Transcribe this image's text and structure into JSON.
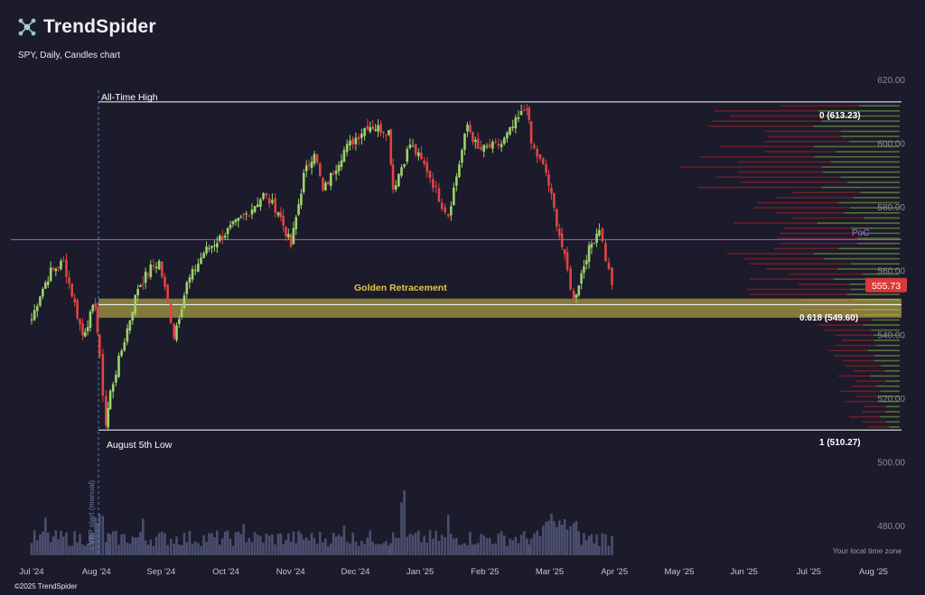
{
  "brand": {
    "logo": "TrendSpider",
    "copyright": "©2025 TrendSpider"
  },
  "chart_subtitle": "SPY, Daily, Candles chart",
  "colors": {
    "background": "#1b1b2b",
    "up": "#9ed36a",
    "down": "#e04444",
    "poc": "#a64bd6",
    "golden_zone": "#d8c84a",
    "price_badge": "#d93a3a",
    "volume": "#4a4f6e"
  },
  "annotations": {
    "ath_label": "All-Time High",
    "low_label": "August 5th Low",
    "fib_0": "0 (613.23)",
    "fib_0618": "0.618 (549.60)",
    "fib_1": "1 (510.27)",
    "golden": "Golden Retracement",
    "poc": "PoC",
    "current_price": "555.73",
    "vbp_marker": "↕ VBP start (manual)",
    "timezone": "Your local time zone"
  },
  "chart_data": {
    "type": "candlestick",
    "symbol": "SPY",
    "interval": "Daily",
    "title": "SPY, Daily, Candles chart",
    "y_ticks": [
      620,
      600,
      580,
      560,
      540,
      520,
      500,
      480
    ],
    "y_tick_labels": [
      "620.00",
      "600.00",
      "580.00",
      "560.00",
      "540.00",
      "520.00",
      "500.00",
      "480.00"
    ],
    "ylim": [
      474,
      624
    ],
    "x_ticks": [
      "Jul '24",
      "Aug '24",
      "Sep '24",
      "Oct '24",
      "Nov '24",
      "Dec '24",
      "Jan '25",
      "Feb '25",
      "Mar '25",
      "Apr '25",
      "May '25",
      "Jun '25",
      "Jul '25",
      "Aug '25"
    ],
    "fibonacci": {
      "high": 613.23,
      "low": 510.27,
      "level_0618": 549.6,
      "golden_zone": [
        545.5,
        551.5
      ]
    },
    "poc_price": 570.0,
    "current_price": 555.73,
    "close_path": [
      {
        "date": "2024-07-01",
        "close": 545
      },
      {
        "date": "2024-07-05",
        "close": 553
      },
      {
        "date": "2024-07-10",
        "close": 560
      },
      {
        "date": "2024-07-16",
        "close": 563
      },
      {
        "date": "2024-07-20",
        "close": 553
      },
      {
        "date": "2024-07-25",
        "close": 540
      },
      {
        "date": "2024-07-31",
        "close": 550
      },
      {
        "date": "2024-08-02",
        "close": 532
      },
      {
        "date": "2024-08-05",
        "close": 512
      },
      {
        "date": "2024-08-07",
        "close": 522
      },
      {
        "date": "2024-08-15",
        "close": 542
      },
      {
        "date": "2024-08-20",
        "close": 555
      },
      {
        "date": "2024-08-26",
        "close": 561
      },
      {
        "date": "2024-08-30",
        "close": 563
      },
      {
        "date": "2024-09-03",
        "close": 550
      },
      {
        "date": "2024-09-06",
        "close": 540
      },
      {
        "date": "2024-09-12",
        "close": 556
      },
      {
        "date": "2024-09-20",
        "close": 566
      },
      {
        "date": "2024-09-30",
        "close": 572
      },
      {
        "date": "2024-10-10",
        "close": 578
      },
      {
        "date": "2024-10-18",
        "close": 584
      },
      {
        "date": "2024-10-25",
        "close": 579
      },
      {
        "date": "2024-10-31",
        "close": 568
      },
      {
        "date": "2024-11-06",
        "close": 590
      },
      {
        "date": "2024-11-11",
        "close": 598
      },
      {
        "date": "2024-11-15",
        "close": 585
      },
      {
        "date": "2024-11-25",
        "close": 598
      },
      {
        "date": "2024-12-06",
        "close": 606
      },
      {
        "date": "2024-12-16",
        "close": 604
      },
      {
        "date": "2024-12-18",
        "close": 586
      },
      {
        "date": "2024-12-26",
        "close": 600
      },
      {
        "date": "2025-01-03",
        "close": 592
      },
      {
        "date": "2025-01-10",
        "close": 581
      },
      {
        "date": "2025-01-13",
        "close": 578
      },
      {
        "date": "2025-01-22",
        "close": 606
      },
      {
        "date": "2025-01-27",
        "close": 598
      },
      {
        "date": "2025-02-07",
        "close": 600
      },
      {
        "date": "2025-02-19",
        "close": 612
      },
      {
        "date": "2025-02-21",
        "close": 600
      },
      {
        "date": "2025-02-28",
        "close": 591
      },
      {
        "date": "2025-03-10",
        "close": 560
      },
      {
        "date": "2025-03-13",
        "close": 551
      },
      {
        "date": "2025-03-19",
        "close": 565
      },
      {
        "date": "2025-03-25",
        "close": 574
      },
      {
        "date": "2025-03-28",
        "close": 564
      },
      {
        "date": "2025-03-31",
        "close": 555.73
      }
    ]
  }
}
